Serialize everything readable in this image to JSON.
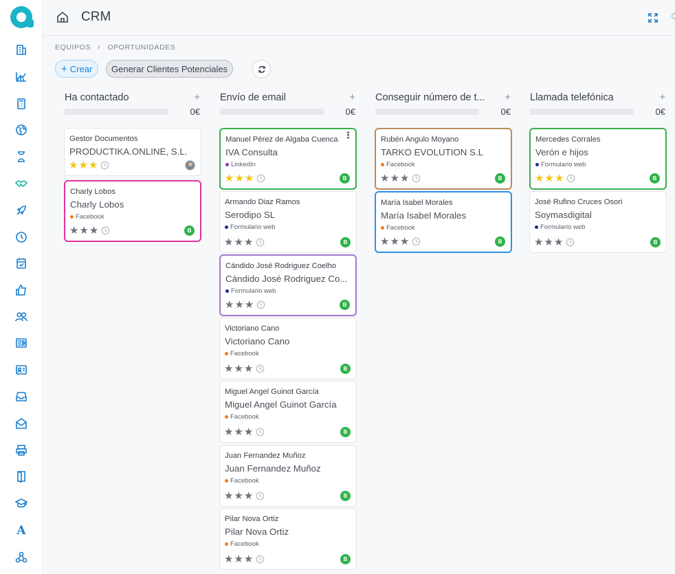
{
  "app": {
    "title": "CRM",
    "brand_color": "#1ab3c7",
    "accent_color": "#1b7fcf"
  },
  "sidebar": {
    "icons": [
      "building-icon",
      "chart-icon",
      "calculator-icon",
      "globe-icon",
      "hourglass-icon",
      "handshake-icon",
      "rocket-icon",
      "clock-icon",
      "calendar-check-icon",
      "thumbs-up-icon",
      "users-icon",
      "id-card-icon",
      "contact-card-icon",
      "inbox-icon",
      "mail-open-icon",
      "printer-icon",
      "door-icon",
      "graduation-cap-icon",
      "font-icon",
      "modules-icon"
    ],
    "active": "handshake-icon",
    "font_glyph": "A"
  },
  "breadcrumb": {
    "items": [
      "EQUIPOS",
      "OPORTUNIDADES"
    ],
    "separator": "›"
  },
  "toolbar": {
    "create_label": "Crear",
    "generate_label": "Generar Clientes Potenciales"
  },
  "columns": [
    {
      "title": "Ha contactado",
      "amount": "0€",
      "cards": [
        {
          "contact": "Gestor Documentos",
          "company": "PRODUCTIKA.ONLINE, S.L.",
          "source": "",
          "source_color": "",
          "stars": [
            "gold",
            "gold",
            "gold"
          ],
          "owner": "avatar",
          "border": "none"
        },
        {
          "contact": "Charly Lobos",
          "company": "Charly Lobos",
          "source": "Facebook",
          "source_color": "#f07d1a",
          "stars": [
            "grey",
            "grey",
            "grey"
          ],
          "owner": "B",
          "border": "pink"
        }
      ]
    },
    {
      "title": "Envío de email",
      "amount": "0€",
      "cards": [
        {
          "contact": "Manuel Pérez de Algaba Cuenca",
          "company": "IVA Consulta",
          "source": "LinkedIn",
          "source_color": "#8a3aa8",
          "stars": [
            "gold",
            "gold",
            "gold"
          ],
          "owner": "B",
          "border": "green",
          "menu": "⋮"
        },
        {
          "contact": "Armando Diaz Ramos",
          "company": "Serodipo SL",
          "source": "Formulario web",
          "source_color": "#1d2b8c",
          "stars": [
            "grey",
            "grey",
            "grey"
          ],
          "owner": "B",
          "border": "none"
        },
        {
          "contact": "Cándido José Rodriguez Coelho",
          "company": "Cándido José Rodriguez Co...",
          "source": "Formulario web",
          "source_color": "#1d2b8c",
          "stars": [
            "grey",
            "grey",
            "grey"
          ],
          "owner": "B",
          "border": "purple"
        },
        {
          "contact": "Victoriano Cano",
          "company": "Victoriano Cano",
          "source": "Facebook",
          "source_color": "#f07d1a",
          "stars": [
            "grey",
            "grey",
            "grey"
          ],
          "owner": "B",
          "border": "none"
        },
        {
          "contact": "Miguel Angel Guinot García",
          "company": "Miguel Angel Guinot García",
          "source": "Facebook",
          "source_color": "#f07d1a",
          "stars": [
            "grey",
            "grey",
            "grey"
          ],
          "owner": "B",
          "border": "none"
        },
        {
          "contact": "Juan Fernandez Muñoz",
          "company": "Juan Fernandez Muñoz",
          "source": "Facebook",
          "source_color": "#f07d1a",
          "stars": [
            "grey",
            "grey",
            "grey"
          ],
          "owner": "B",
          "border": "none"
        },
        {
          "contact": "Pilar Nova Ortiz",
          "company": "Pilar Nova Ortiz",
          "source": "Facebook",
          "source_color": "#f07d1a",
          "stars": [
            "grey",
            "grey",
            "grey"
          ],
          "owner": "B",
          "border": "none"
        }
      ]
    },
    {
      "title": "Conseguir número de t...",
      "amount": "0€",
      "cards": [
        {
          "contact": "Rubén Angulo Moyano",
          "company": "TARKO EVOLUTION S.L",
          "source": "Facebook",
          "source_color": "#f07d1a",
          "stars": [
            "grey",
            "grey",
            "grey"
          ],
          "owner": "B",
          "border": "brown"
        },
        {
          "contact": "María Isabel Morales",
          "company": "María Isabel Morales",
          "source": "Facebook",
          "source_color": "#f07d1a",
          "stars": [
            "grey",
            "grey",
            "grey"
          ],
          "owner": "B",
          "border": "blue"
        }
      ]
    },
    {
      "title": "Llamada telefónica",
      "amount": "0€",
      "cards": [
        {
          "contact": "Mercedes Corrales",
          "company": "Verón e hijos",
          "source": "Formulario web",
          "source_color": "#1d2b8c",
          "stars": [
            "gold",
            "gold",
            "gold"
          ],
          "owner": "B",
          "border": "green"
        },
        {
          "contact": "José Rufino Cruces Osori",
          "company": "Soymasdigital",
          "source": "Formulario web",
          "source_color": "#1d2b8c",
          "stars": [
            "grey",
            "grey",
            "grey"
          ],
          "owner": "B",
          "border": "none"
        }
      ]
    }
  ]
}
